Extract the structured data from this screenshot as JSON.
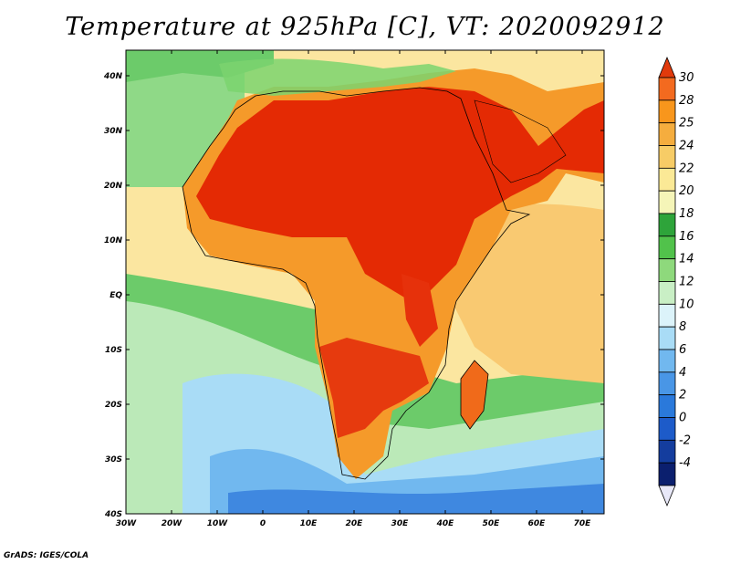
{
  "title": "Temperature at 925hPa [C], VT: 2020092912",
  "credit": "GrADS: IGES/COLA",
  "map": {
    "lat_ticks": [
      "40N",
      "30N",
      "20N",
      "10N",
      "EQ",
      "10S",
      "20S",
      "30S",
      "40S"
    ],
    "lon_ticks": [
      "30W",
      "20W",
      "10W",
      "0",
      "10E",
      "20E",
      "30E",
      "40E",
      "50E",
      "60E",
      "70E"
    ],
    "lon_range": [
      -30,
      75
    ],
    "lat_range": [
      -40,
      45
    ]
  },
  "colorbar": {
    "labels": [
      "30",
      "28",
      "25",
      "24",
      "22",
      "20",
      "18",
      "16",
      "14",
      "12",
      "10",
      "8",
      "6",
      "4",
      "2",
      "0",
      "-2",
      "-4"
    ],
    "colors": [
      "#e13a0c",
      "#f36a1f",
      "#f8961c",
      "#f5ad3e",
      "#f7cc66",
      "#fbe996",
      "#f5f5b8",
      "#2ea43a",
      "#51c24b",
      "#8ed97c",
      "#c9efc5",
      "#dcf3fa",
      "#a9dcf6",
      "#71b8ef",
      "#4996e6",
      "#2a79db",
      "#1d5bc9",
      "#143d9e",
      "#0b1f6e",
      "#e8e8f8"
    ]
  },
  "colors": {
    "hot": "#db2200",
    "warm": "#f06a1a",
    "mild": "#f8a73a",
    "yellow": "#fde6a0",
    "green": "#7bd36e",
    "light_blue": "#a9dcf6",
    "blue": "#4a9be8",
    "deep_blue": "#2f6fd8"
  }
}
